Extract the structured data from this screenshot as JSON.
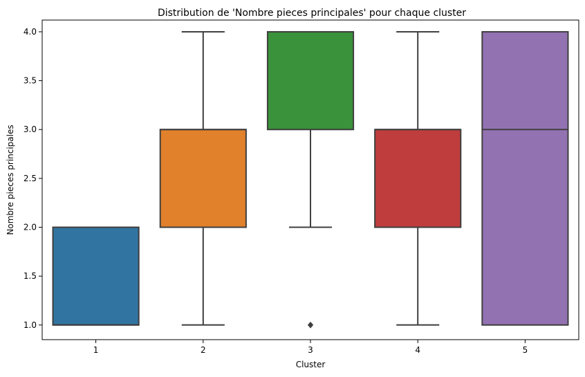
{
  "chart_data": {
    "type": "box",
    "title": "Distribution de 'Nombre pieces principales' pour chaque cluster",
    "xlabel": "Cluster",
    "ylabel": "Nombre pieces principales",
    "categories": [
      "1",
      "2",
      "3",
      "4",
      "5"
    ],
    "ylim": [
      0.85,
      4.12
    ],
    "yticks": [
      1.0,
      1.5,
      2.0,
      2.5,
      3.0,
      3.5,
      4.0
    ],
    "ytick_labels": [
      "1.0",
      "1.5",
      "2.0",
      "2.5",
      "3.0",
      "3.5",
      "4.0"
    ],
    "grid": false,
    "legend": "none",
    "boxes": [
      {
        "category": "1",
        "whisker_low": 1.0,
        "q1": 1.0,
        "median": 1.0,
        "q3": 2.0,
        "whisker_high": 2.0,
        "outliers": [],
        "color": "#3274a1"
      },
      {
        "category": "2",
        "whisker_low": 1.0,
        "q1": 2.0,
        "median": 3.0,
        "q3": 3.0,
        "whisker_high": 4.0,
        "outliers": [],
        "color": "#e1812c"
      },
      {
        "category": "3",
        "whisker_low": 2.0,
        "q1": 3.0,
        "median": 4.0,
        "q3": 4.0,
        "whisker_high": 4.0,
        "outliers": [
          1.0
        ],
        "color": "#3a923a"
      },
      {
        "category": "4",
        "whisker_low": 1.0,
        "q1": 2.0,
        "median": 3.0,
        "q3": 3.0,
        "whisker_high": 4.0,
        "outliers": [],
        "color": "#c03d3e"
      },
      {
        "category": "5",
        "whisker_low": 1.0,
        "q1": 1.0,
        "median": 3.0,
        "q3": 4.0,
        "whisker_high": 4.0,
        "outliers": [],
        "color": "#9372b2"
      }
    ],
    "line_color": "#3f3f3f"
  }
}
